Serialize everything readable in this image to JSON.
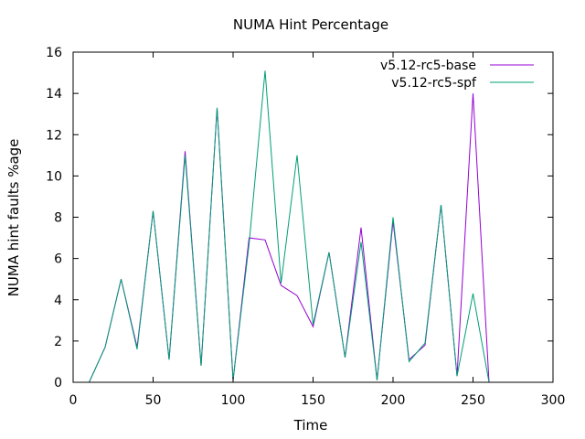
{
  "chart_data": {
    "type": "line",
    "title": "NUMA Hint Percentage",
    "xlabel": "Time",
    "ylabel": "NUMA hint faults %age",
    "xlim": [
      0,
      300
    ],
    "ylim": [
      0,
      16
    ],
    "xticks": [
      0,
      50,
      100,
      150,
      200,
      250,
      300
    ],
    "yticks": [
      0,
      2,
      4,
      6,
      8,
      10,
      12,
      14,
      16
    ],
    "grid": false,
    "legend_position": "top-right",
    "series": [
      {
        "name": "v5.12-rc5-base",
        "color": "#9400d3",
        "points": [
          [
            10,
            0
          ],
          [
            20,
            1.7
          ],
          [
            30,
            5
          ],
          [
            40,
            1.7
          ],
          [
            50,
            8.3
          ],
          [
            60,
            1.1
          ],
          [
            70,
            11.2
          ],
          [
            80,
            0.8
          ],
          [
            90,
            13.3
          ],
          [
            100,
            0.1
          ],
          [
            110,
            7
          ],
          [
            120,
            6.9
          ],
          [
            130,
            4.7
          ],
          [
            140,
            4.2
          ],
          [
            150,
            2.7
          ],
          [
            160,
            6.3
          ],
          [
            170,
            1.2
          ],
          [
            180,
            7.5
          ],
          [
            190,
            0.1
          ],
          [
            200,
            7.8
          ],
          [
            210,
            1.1
          ],
          [
            220,
            1.8
          ],
          [
            230,
            8.6
          ],
          [
            240,
            0.3
          ],
          [
            250,
            14
          ],
          [
            260,
            0
          ]
        ]
      },
      {
        "name": "v5.12-rc5-spf",
        "color": "#009e73",
        "points": [
          [
            10,
            0
          ],
          [
            20,
            1.7
          ],
          [
            30,
            5
          ],
          [
            40,
            1.6
          ],
          [
            50,
            8.3
          ],
          [
            60,
            1.1
          ],
          [
            70,
            11
          ],
          [
            80,
            0.8
          ],
          [
            90,
            13.3
          ],
          [
            100,
            0.1
          ],
          [
            110,
            6.7
          ],
          [
            120,
            15.1
          ],
          [
            130,
            4.8
          ],
          [
            140,
            11
          ],
          [
            150,
            2.8
          ],
          [
            160,
            6.3
          ],
          [
            170,
            1.2
          ],
          [
            180,
            6.8
          ],
          [
            190,
            0.1
          ],
          [
            200,
            8
          ],
          [
            210,
            1
          ],
          [
            220,
            1.9
          ],
          [
            230,
            8.6
          ],
          [
            240,
            0.3
          ],
          [
            250,
            4.3
          ],
          [
            260,
            0
          ]
        ]
      }
    ]
  }
}
